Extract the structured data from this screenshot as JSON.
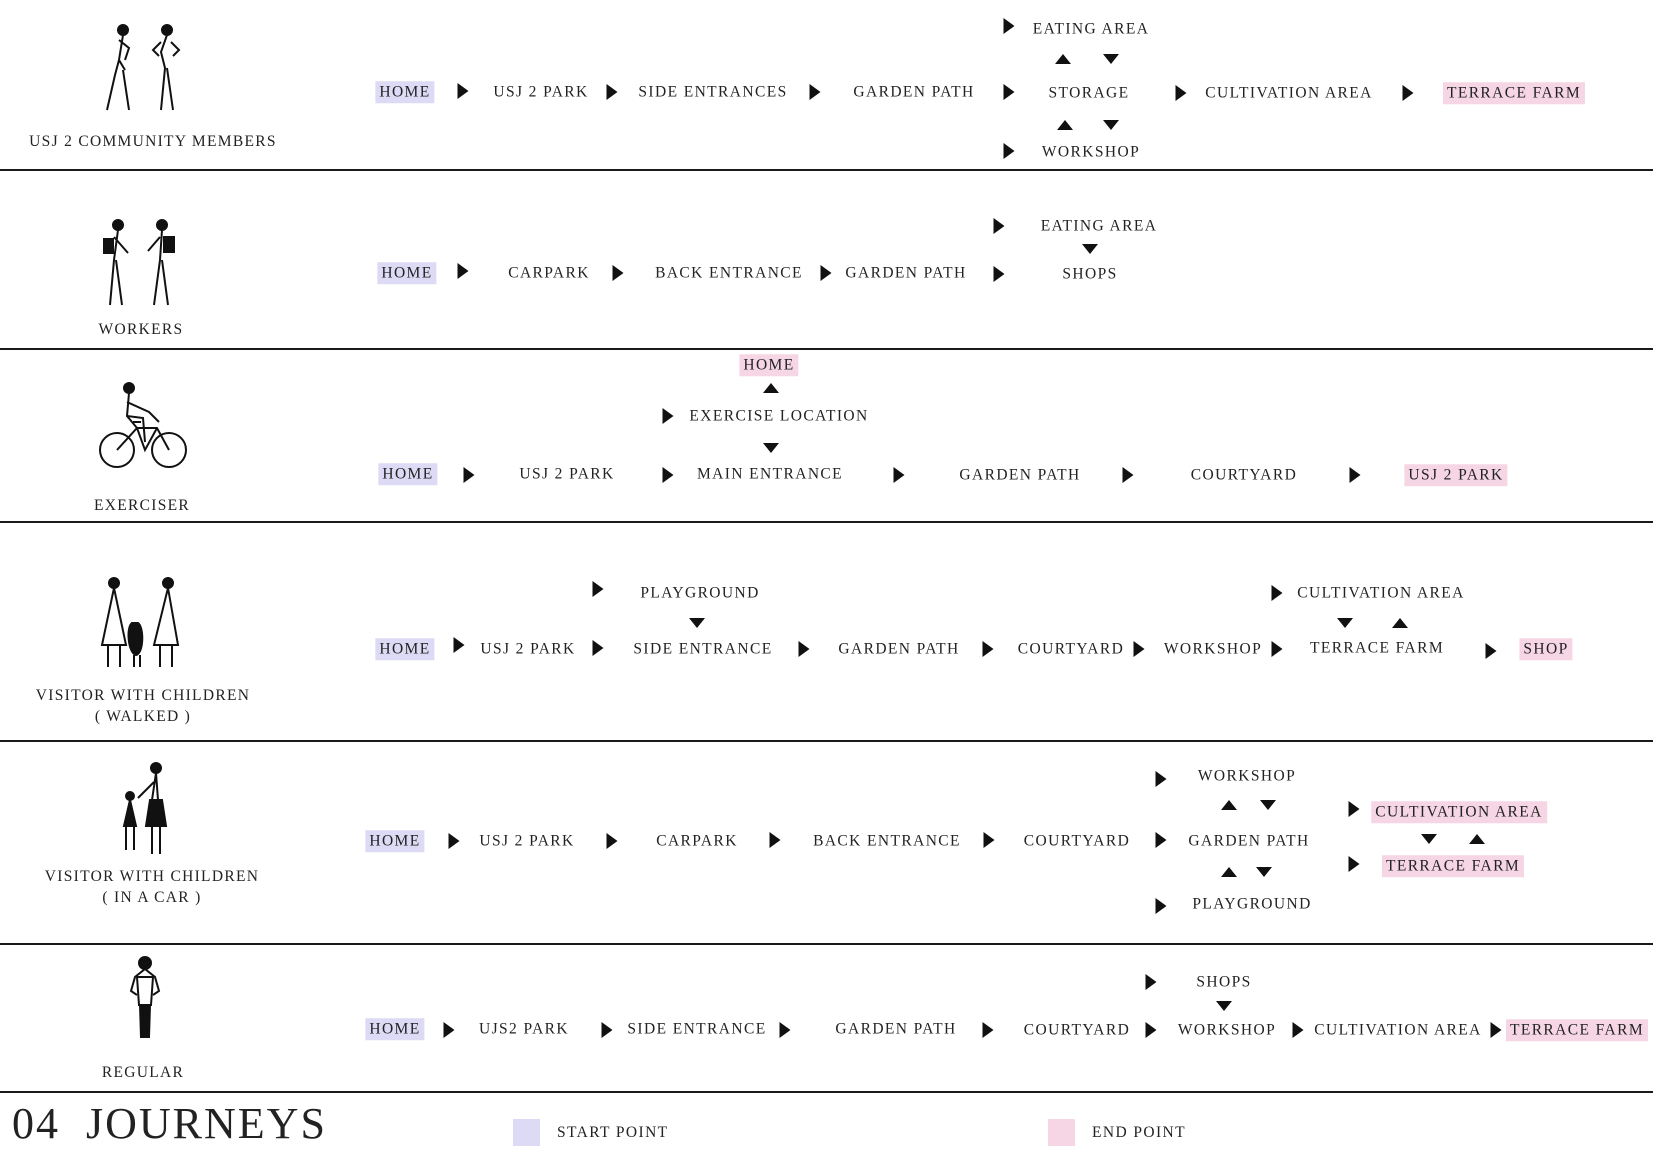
{
  "colors": {
    "start": "#dcdaf4",
    "end": "#f6d6e4",
    "line": "#1a1a1a"
  },
  "title": {
    "number": "04",
    "text": "JOURNEYS"
  },
  "legend": {
    "start_label": "START POINT",
    "end_label": "END POINT"
  },
  "personas": [
    {
      "name": "USJ 2 COMMUNITY MEMBERS",
      "figure_icon": "two-walking-people-icon",
      "nodes": [
        "HOME",
        "USJ 2 PARK",
        "SIDE ENTRANCES",
        "GARDEN PATH",
        "EATING AREA",
        "STORAGE",
        "WORKSHOP",
        "CULTIVATION AREA",
        "TERRACE FARM"
      ],
      "start": "HOME",
      "end": "TERRACE FARM"
    },
    {
      "name": "WORKERS",
      "figure_icon": "two-workers-with-bags-icon",
      "nodes": [
        "HOME",
        "CARPARK",
        "BACK ENTRANCE",
        "GARDEN PATH",
        "EATING AREA",
        "SHOPS"
      ],
      "start": "HOME",
      "end": ""
    },
    {
      "name": "EXERCISER",
      "figure_icon": "cyclist-icon",
      "nodes": [
        "HOME",
        "USJ 2 PARK",
        "EXERCISE LOCATION",
        "HOME",
        "MAIN ENTRANCE",
        "GARDEN PATH",
        "COURTYARD",
        "USJ 2 PARK"
      ],
      "start": "HOME",
      "end": "USJ 2 PARK"
    },
    {
      "name_line1": "VISITOR WITH CHILDREN",
      "name_line2": "( WALKED )",
      "figure_icon": "family-walking-icon",
      "nodes": [
        "HOME",
        "USJ 2 PARK",
        "PLAYGROUND",
        "SIDE ENTRANCE",
        "GARDEN PATH",
        "COURTYARD",
        "WORKSHOP",
        "CULTIVATION AREA",
        "TERRACE FARM",
        "SHOP"
      ],
      "start": "HOME",
      "end": "SHOP"
    },
    {
      "name_line1": "VISITOR WITH CHILDREN",
      "name_line2": "( IN A CAR )",
      "figure_icon": "parent-and-child-icon",
      "nodes": [
        "HOME",
        "USJ 2 PARK",
        "CARPARK",
        "BACK ENTRANCE",
        "COURTYARD",
        "WORKSHOP",
        "GARDEN PATH",
        "PLAYGROUND",
        "CULTIVATION AREA",
        "TERRACE FARM"
      ],
      "start": "HOME",
      "end": [
        "CULTIVATION AREA",
        "TERRACE FARM"
      ]
    },
    {
      "name": "REGULAR",
      "figure_icon": "standing-person-icon",
      "nodes": [
        "HOME",
        "UJS2 PARK",
        "SIDE ENTRANCE",
        "GARDEN PATH",
        "COURTYARD",
        "SHOPS",
        "WORKSHOP",
        "CULTIVATION AREA",
        "TERRACE FARM"
      ],
      "start": "HOME",
      "end": "TERRACE FARM"
    }
  ]
}
